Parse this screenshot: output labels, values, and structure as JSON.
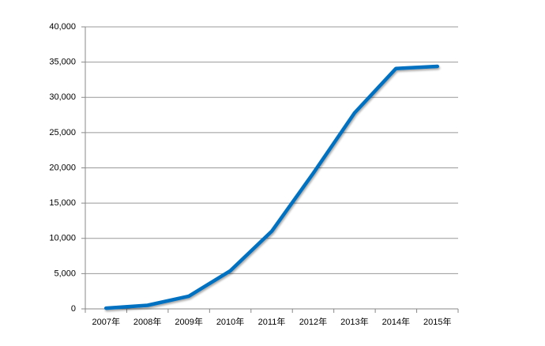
{
  "chart_data": {
    "type": "line",
    "categories": [
      "2007年",
      "2008年",
      "2009年",
      "2010年",
      "2011年",
      "2012年",
      "2013年",
      "2014年",
      "2015年"
    ],
    "values": [
      100,
      500,
      1800,
      5400,
      11000,
      19200,
      27800,
      34100,
      34400
    ],
    "color": "#0070c0",
    "ylim": [
      0,
      40000
    ],
    "yticks": [
      0,
      {
        "value": 5000,
        "label": "5,000"
      },
      {
        "value": 10000,
        "label": "10,000"
      },
      {
        "value": 15000,
        "label": "15,000"
      },
      {
        "value": 20000,
        "label": "20,000"
      },
      {
        "value": 25000,
        "label": "25,000"
      },
      {
        "value": 30000,
        "label": "30,000"
      },
      {
        "value": 35000,
        "label": "35,000"
      },
      {
        "value": 40000,
        "label": "40,000"
      }
    ],
    "grid": true
  }
}
